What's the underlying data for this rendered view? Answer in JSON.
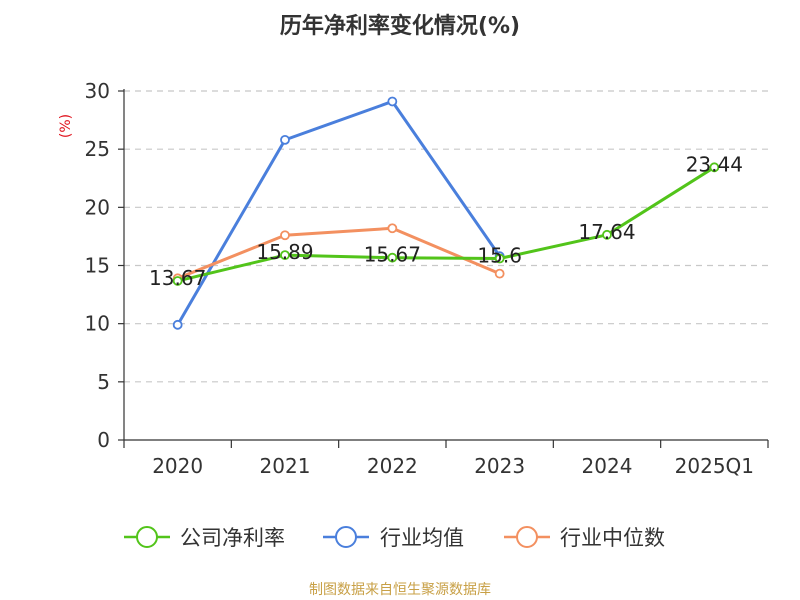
{
  "chart_data": {
    "type": "line",
    "title": "历年净利率变化情况(%)",
    "ylabel": "(%)",
    "xlabel": "",
    "categories": [
      "2020",
      "2021",
      "2022",
      "2023",
      "2024",
      "2025Q1"
    ],
    "ylim": [
      0,
      30
    ],
    "yticks": [
      0,
      5,
      10,
      15,
      20,
      25,
      30
    ],
    "grid": true,
    "legend_position": "bottom",
    "series": [
      {
        "name": "公司净利率",
        "color": "#52c41a",
        "values": [
          13.67,
          15.89,
          15.67,
          15.6,
          17.64,
          23.44
        ],
        "labels": [
          "13.67",
          "15.89",
          "15.67",
          "15.6",
          "17.64",
          "23.44"
        ]
      },
      {
        "name": "行业均值",
        "color": "#4a7fdc",
        "values": [
          9.9,
          25.8,
          29.1,
          15.8,
          null,
          null
        ]
      },
      {
        "name": "行业中位数",
        "color": "#f39060",
        "values": [
          13.9,
          17.6,
          18.2,
          14.3,
          null,
          null
        ]
      }
    ]
  },
  "source": "制图数据来自恒生聚源数据库"
}
